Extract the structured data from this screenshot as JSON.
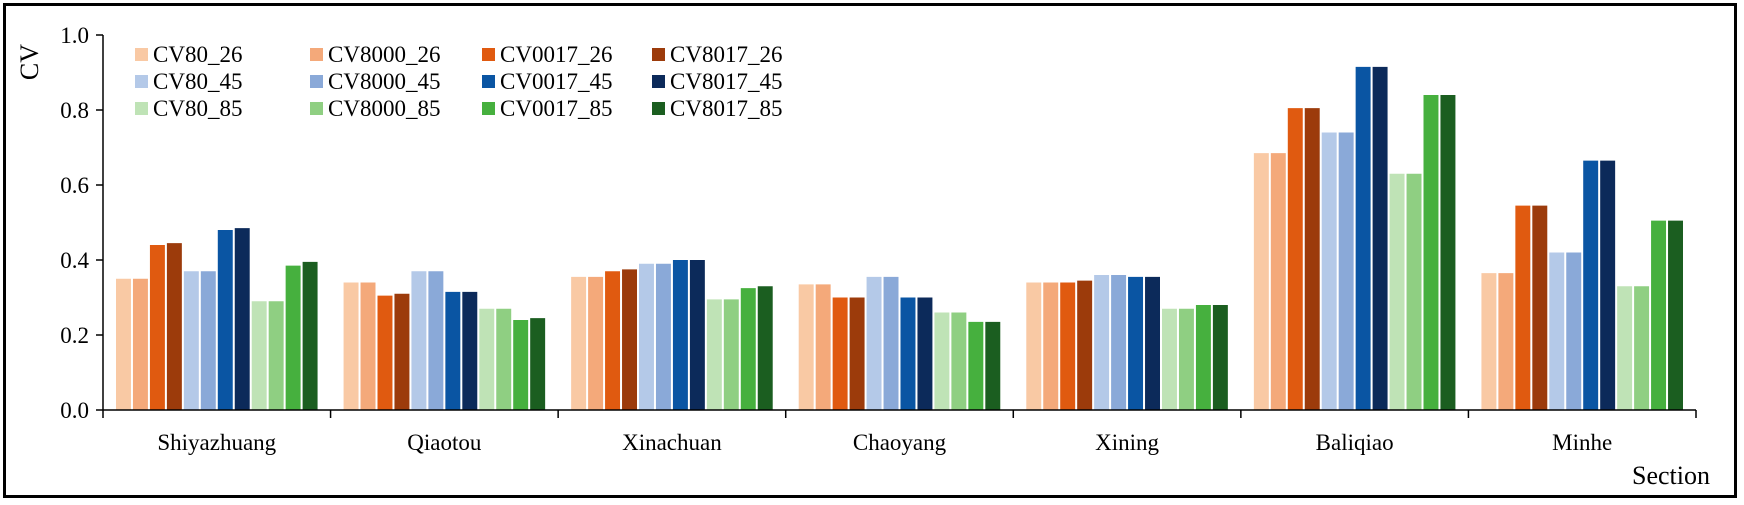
{
  "chart_data": {
    "type": "bar",
    "title": "",
    "xlabel": "Section",
    "ylabel": "CV",
    "ylim": [
      0,
      1.0
    ],
    "yticks": [
      "0.0",
      "0.2",
      "0.4",
      "0.6",
      "0.8",
      "1.0"
    ],
    "grid": false,
    "legend_position": "top-left",
    "categories": [
      "Shiyazhuang",
      "Qiaotou",
      "Xinachuan",
      "Chaoyang",
      "Xining",
      "Baliqiao",
      "Minhe"
    ],
    "series": [
      {
        "name": "CV80_26",
        "color": "#f9c9a4",
        "values": [
          0.35,
          0.34,
          0.355,
          0.335,
          0.34,
          0.685,
          0.365
        ]
      },
      {
        "name": "CV8000_26",
        "color": "#f4a97a",
        "values": [
          0.35,
          0.34,
          0.355,
          0.335,
          0.34,
          0.685,
          0.365
        ]
      },
      {
        "name": "CV0017_26",
        "color": "#e05a10",
        "values": [
          0.44,
          0.305,
          0.37,
          0.3,
          0.34,
          0.805,
          0.545
        ]
      },
      {
        "name": "CV8017_26",
        "color": "#9c3b0b",
        "values": [
          0.445,
          0.31,
          0.375,
          0.3,
          0.345,
          0.805,
          0.545
        ]
      },
      {
        "name": "CV80_45",
        "color": "#b4c9e8",
        "values": [
          0.37,
          0.37,
          0.39,
          0.355,
          0.36,
          0.74,
          0.42
        ]
      },
      {
        "name": "CV8000_45",
        "color": "#8aa9d8",
        "values": [
          0.37,
          0.37,
          0.39,
          0.355,
          0.36,
          0.74,
          0.42
        ]
      },
      {
        "name": "CV0017_45",
        "color": "#0a55a3",
        "values": [
          0.48,
          0.315,
          0.4,
          0.3,
          0.355,
          0.915,
          0.665
        ]
      },
      {
        "name": "CV8017_45",
        "color": "#0c2a5a",
        "values": [
          0.485,
          0.315,
          0.4,
          0.3,
          0.355,
          0.915,
          0.665
        ]
      },
      {
        "name": "CV80_85",
        "color": "#bfe3b6",
        "values": [
          0.29,
          0.27,
          0.295,
          0.26,
          0.27,
          0.63,
          0.33
        ]
      },
      {
        "name": "CV8000_85",
        "color": "#8fcf82",
        "values": [
          0.29,
          0.27,
          0.295,
          0.26,
          0.27,
          0.63,
          0.33
        ]
      },
      {
        "name": "CV0017_85",
        "color": "#46b03e",
        "values": [
          0.385,
          0.24,
          0.325,
          0.235,
          0.28,
          0.84,
          0.505
        ]
      },
      {
        "name": "CV8017_85",
        "color": "#1b5e20",
        "values": [
          0.395,
          0.245,
          0.33,
          0.235,
          0.28,
          0.84,
          0.505
        ]
      }
    ]
  }
}
